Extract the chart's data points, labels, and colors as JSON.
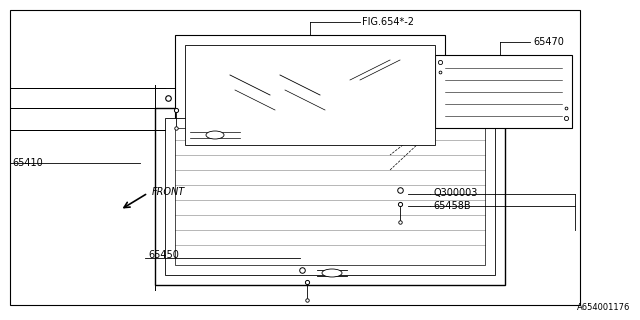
{
  "background_color": "#ffffff",
  "line_color": "#000000",
  "text_color": "#000000",
  "fig_width": 6.4,
  "fig_height": 3.2,
  "dpi": 100,
  "watermark": "A654001176",
  "parts": {
    "fig654": "FIG.654*-2",
    "p65410": "65410",
    "p65450": "65450",
    "p65470": "65470",
    "p0300003": "Q300003",
    "p65458b": "65458B",
    "front_label": "FRONT"
  }
}
